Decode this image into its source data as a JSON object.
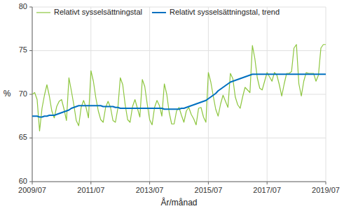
{
  "chart_data": {
    "type": "line",
    "title": "",
    "xlabel": "År/månad",
    "ylabel": "%",
    "categories": [
      "2009/07",
      null,
      null,
      null,
      null,
      null,
      null,
      null,
      null,
      null,
      null,
      null,
      null,
      null,
      null,
      null,
      null,
      null,
      null,
      null,
      null,
      null,
      null,
      null,
      "2011/07",
      null,
      null,
      null,
      null,
      null,
      null,
      null,
      null,
      null,
      null,
      null,
      null,
      null,
      null,
      null,
      null,
      null,
      null,
      null,
      null,
      null,
      null,
      null,
      "2013/07",
      null,
      null,
      null,
      null,
      null,
      null,
      null,
      null,
      null,
      null,
      null,
      null,
      null,
      null,
      null,
      null,
      null,
      null,
      null,
      null,
      null,
      null,
      null,
      "2015/07",
      null,
      null,
      null,
      null,
      null,
      null,
      null,
      null,
      null,
      null,
      null,
      null,
      null,
      null,
      null,
      null,
      null,
      null,
      null,
      null,
      null,
      null,
      null,
      "2017/07",
      null,
      null,
      null,
      null,
      null,
      null,
      null,
      null,
      null,
      null,
      null,
      null,
      null,
      null,
      null,
      null,
      null,
      null,
      null,
      null,
      null,
      null,
      null,
      "2019/07"
    ],
    "series": [
      {
        "name": "Relativt sysselsättningstal",
        "color": "#8dc63f",
        "values": [
          70.0,
          70.2,
          69.4,
          65.8,
          68.4,
          69.9,
          71.1,
          69.8,
          68.1,
          67.3,
          68.6,
          69.2,
          69.4,
          68.3,
          67.0,
          71.9,
          70.4,
          68.8,
          67.0,
          66.4,
          68.5,
          69.3,
          68.5,
          67.3,
          72.7,
          71.5,
          69.6,
          68.1,
          67.1,
          66.8,
          68.5,
          69.2,
          68.5,
          67.0,
          66.8,
          68.4,
          71.9,
          71.1,
          68.8,
          67.1,
          66.8,
          68.6,
          69.4,
          68.4,
          67.4,
          71.7,
          70.9,
          68.9,
          67.1,
          66.5,
          68.5,
          69.3,
          68.7,
          67.5,
          71.2,
          70.0,
          67.9,
          66.6,
          66.6,
          68.1,
          68.5,
          67.6,
          66.8,
          68.1,
          68.5,
          67.7,
          67.2,
          66.5,
          68.4,
          68.5,
          67.4,
          66.8,
          72.5,
          71.4,
          69.8,
          68.3,
          67.5,
          68.9,
          69.9,
          69.2,
          68.5,
          72.4,
          71.8,
          69.7,
          68.8,
          68.4,
          69.7,
          70.8,
          70.5,
          70.2,
          75.6,
          74.1,
          71.9,
          70.7,
          70.5,
          71.5,
          72.5,
          72.0,
          71.5,
          72.5,
          72.2,
          71.1,
          69.8,
          71.2,
          72.4,
          72.4,
          72.6,
          75.3,
          75.7,
          71.2,
          69.8,
          71.5,
          72.5,
          72.4,
          72.4,
          72.4,
          71.5,
          72.2,
          75.3,
          75.7,
          75.7
        ]
      },
      {
        "name": "Relativt sysselsättningstal, trend",
        "color": "#0070c0",
        "values": [
          67.5,
          67.5,
          67.5,
          67.4,
          67.4,
          67.5,
          67.5,
          67.6,
          67.6,
          67.6,
          67.7,
          67.8,
          67.9,
          68.0,
          68.1,
          68.2,
          68.4,
          68.5,
          68.6,
          68.7,
          68.7,
          68.7,
          68.7,
          68.7,
          68.7,
          68.7,
          68.7,
          68.7,
          68.7,
          68.6,
          68.6,
          68.6,
          68.6,
          68.6,
          68.5,
          68.5,
          68.4,
          68.4,
          68.4,
          68.4,
          68.4,
          68.4,
          68.4,
          68.4,
          68.4,
          68.4,
          68.4,
          68.4,
          68.4,
          68.4,
          68.4,
          68.4,
          68.4,
          68.4,
          68.3,
          68.3,
          68.3,
          68.3,
          68.3,
          68.3,
          68.3,
          68.4,
          68.4,
          68.5,
          68.6,
          68.7,
          68.8,
          68.9,
          69.0,
          69.1,
          69.2,
          69.3,
          69.5,
          69.7,
          69.9,
          70.1,
          70.4,
          70.6,
          70.8,
          71.0,
          71.2,
          71.4,
          71.5,
          71.6,
          71.7,
          71.8,
          71.9,
          72.0,
          72.1,
          72.2,
          72.3,
          72.3,
          72.3,
          72.3,
          72.3,
          72.3,
          72.3,
          72.3,
          72.3,
          72.3,
          72.3,
          72.3,
          72.3,
          72.3,
          72.3,
          72.3,
          72.3,
          72.3,
          72.3,
          72.3,
          72.3,
          72.3,
          72.3,
          72.3,
          72.3,
          72.3,
          72.3,
          72.3,
          72.3,
          72.3,
          72.3
        ]
      }
    ],
    "ylim": [
      60,
      80
    ],
    "yticks": [
      60,
      65,
      70,
      75,
      80
    ],
    "grid": true,
    "legend": "upper left"
  }
}
